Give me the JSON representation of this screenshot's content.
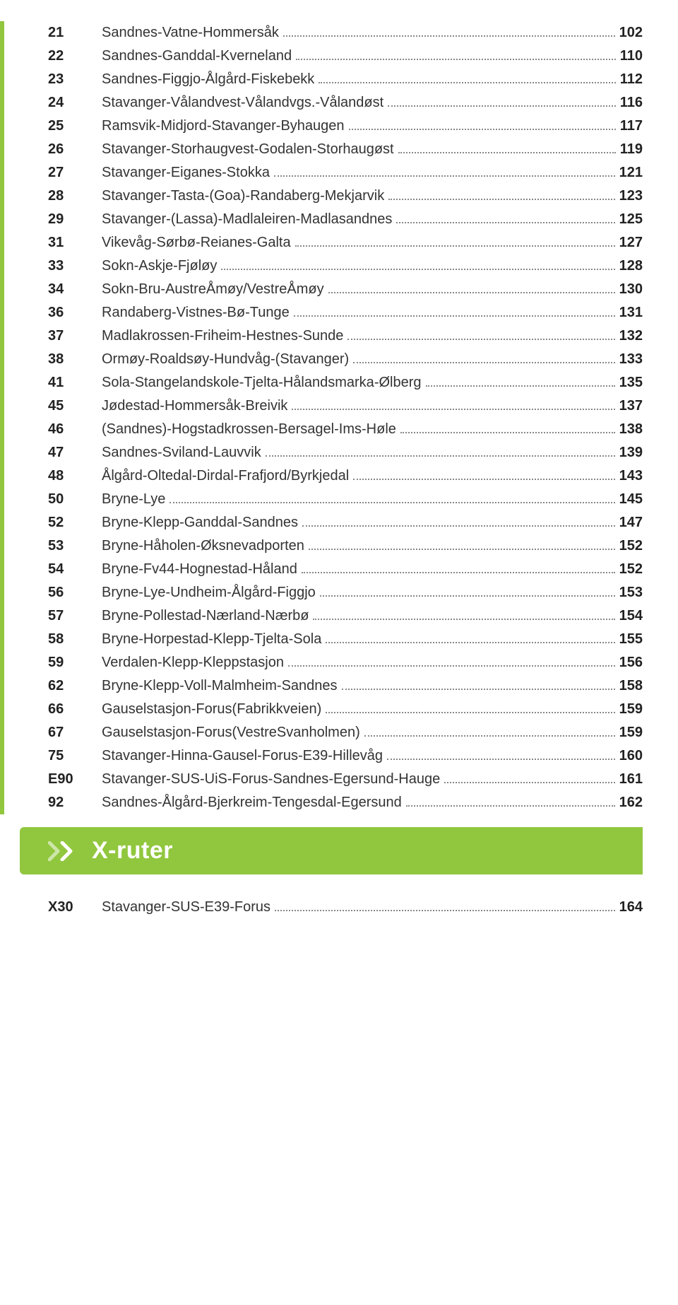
{
  "colors": {
    "accent": "#91c73e",
    "text": "#333333",
    "bold": "#222222",
    "dots": "#888888",
    "white": "#ffffff"
  },
  "typography": {
    "row_fontsize": 20,
    "title_fontsize": 34,
    "font_family": "Trebuchet MS"
  },
  "section2": {
    "title": "X-ruter"
  },
  "routes_main": [
    {
      "num": "21",
      "name": "Sandnes - Vatne - Hommersåk",
      "page": "102"
    },
    {
      "num": "22",
      "name": "Sandnes - Ganddal - Kverneland",
      "page": "110"
    },
    {
      "num": "23",
      "name": "Sandnes - Figgjo - Ålgård - Fiskebekk",
      "page": "112"
    },
    {
      "num": "24",
      "name": "Stavanger - Våland vest - Våland vgs. - Våland øst",
      "page": "116"
    },
    {
      "num": "25",
      "name": "Ramsvik - Midjord - Stavanger - Byhaugen",
      "page": "117"
    },
    {
      "num": "26",
      "name": "Stavanger - Storhaug vest - Godalen - Storhaug øst",
      "page": "119"
    },
    {
      "num": "27",
      "name": "Stavanger - Eiganes - Stokka",
      "page": "121"
    },
    {
      "num": "28",
      "name": "Stavanger - Tasta - (Goa) - Randaberg - Mekjarvik",
      "page": "123"
    },
    {
      "num": "29",
      "name": "Stavanger - (Lassa) - Madlaleiren - Madlasandnes",
      "page": "125"
    },
    {
      "num": "31",
      "name": "Vikevåg - Sørbø - Reianes - Galta",
      "page": "127"
    },
    {
      "num": "33",
      "name": "Sokn - Askje - Fjøløy",
      "page": "128"
    },
    {
      "num": "34",
      "name": "Sokn - Bru - Austre Åmøy / Vestre Åmøy",
      "page": "130"
    },
    {
      "num": "36",
      "name": "Randaberg - Vistnes - Bø - Tunge",
      "page": "131"
    },
    {
      "num": "37",
      "name": "Madlakrossen - Friheim - Hestnes - Sunde",
      "page": "132"
    },
    {
      "num": "38",
      "name": "Ormøy - Roaldsøy - Hundvåg - (Stavanger)",
      "page": "133"
    },
    {
      "num": "41",
      "name": "Sola - Stangeland skole - Tjelta - Hålandsmarka - Ølberg",
      "page": "135"
    },
    {
      "num": "45",
      "name": "Jødestad - Hommersåk - Breivik",
      "page": "137"
    },
    {
      "num": "46",
      "name": "(Sandnes) - Hogstadkrossen - Bersagel - Ims - Høle",
      "page": "138"
    },
    {
      "num": "47",
      "name": "Sandnes - Sviland - Lauvvik",
      "page": "139"
    },
    {
      "num": "48",
      "name": "Ålgård - Oltedal - Dirdal - Frafjord/Byrkjedal",
      "page": "143"
    },
    {
      "num": "50",
      "name": "Bryne - Lye",
      "page": "145"
    },
    {
      "num": "52",
      "name": "Bryne - Klepp - Ganddal - Sandnes",
      "page": "147"
    },
    {
      "num": "53",
      "name": "Bryne - Håholen - Øksnevadporten",
      "page": "152"
    },
    {
      "num": "54",
      "name": "Bryne - Fv 44 - Hognestad - Håland",
      "page": "152"
    },
    {
      "num": "56",
      "name": "Bryne - Lye - Undheim - Ålgård - Figgjo",
      "page": "153"
    },
    {
      "num": "57",
      "name": "Bryne - Pollestad - Nærland - Nærbø",
      "page": "154"
    },
    {
      "num": "58",
      "name": "Bryne - Horpestad - Klepp - Tjelta - Sola",
      "page": "155"
    },
    {
      "num": "59",
      "name": "Verdalen - Klepp - Klepp stasjon",
      "page": "156"
    },
    {
      "num": "62",
      "name": "Bryne - Klepp - Voll - Malmheim - Sandnes",
      "page": "158"
    },
    {
      "num": "66",
      "name": "Gausel stasjon - Forus (Fabrikkveien)",
      "page": "159"
    },
    {
      "num": "67",
      "name": "Gausel stasjon - Forus (Vestre Svanholmen)",
      "page": "159"
    },
    {
      "num": "75",
      "name": "Stavanger - Hinna - Gausel - Forus - E39 - Hillevåg",
      "page": "160"
    },
    {
      "num": "E90",
      "name": "Stavanger - SUS - UiS - Forus - Sandnes - Egersund - Hauge",
      "page": "161"
    },
    {
      "num": "92",
      "name": "Sandnes - Ålgård - Bjerkreim - Tengesdal - Egersund",
      "page": "162"
    }
  ],
  "routes_x": [
    {
      "num": "X30",
      "name": "Stavanger - SUS - E39 - Forus",
      "page": "164"
    }
  ]
}
